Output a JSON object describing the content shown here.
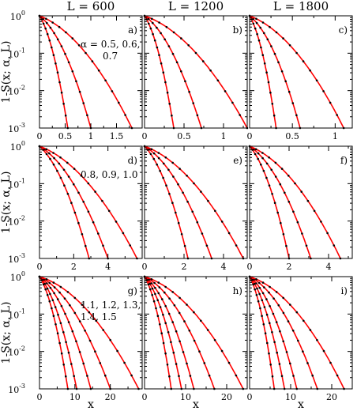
{
  "chart_data": [
    {
      "type": "line",
      "tag": "a)",
      "column_title": "L = 600",
      "xlim": [
        0,
        2.0
      ],
      "ylim": [
        0.001,
        1
      ],
      "yscale": "log",
      "xticks": [
        0,
        0.5,
        1,
        1.5
      ],
      "xtick_labels": [
        "0",
        "0.5",
        "1",
        "1.5"
      ],
      "annotation": [
        "α = 0.5, 0.6,",
        "0.7"
      ],
      "series": [
        {
          "x_end": 0.55
        },
        {
          "x_end": 1.0
        },
        {
          "x_end": 1.8
        }
      ]
    },
    {
      "type": "line",
      "tag": "b)",
      "column_title": "L = 1200",
      "xlim": [
        0,
        1.3
      ],
      "ylim": [
        0.001,
        1
      ],
      "yscale": "log",
      "xticks": [
        0,
        0.5,
        1
      ],
      "xtick_labels": [
        "0",
        "0.5",
        "1"
      ],
      "annotation": [],
      "series": [
        {
          "x_end": 0.37
        },
        {
          "x_end": 0.72
        },
        {
          "x_end": 1.3
        }
      ]
    },
    {
      "type": "line",
      "tag": "c)",
      "column_title": "L = 1800",
      "xlim": [
        0,
        1.2
      ],
      "ylim": [
        0.001,
        1
      ],
      "yscale": "log",
      "xticks": [
        0,
        0.5,
        1
      ],
      "xtick_labels": [
        "0",
        "0.5",
        "1"
      ],
      "annotation": [],
      "series": [
        {
          "x_end": 0.31
        },
        {
          "x_end": 0.59
        },
        {
          "x_end": 1.1
        }
      ]
    },
    {
      "type": "line",
      "tag": "d)",
      "column_title": "",
      "xlim": [
        0,
        6
      ],
      "ylim": [
        0.001,
        1
      ],
      "yscale": "log",
      "xticks": [
        0,
        2,
        4
      ],
      "xtick_labels": [
        "0",
        "2",
        "4"
      ],
      "annotation": [
        "0.8, 0.9, 1.0"
      ],
      "series": [
        {
          "x_end": 2.9
        },
        {
          "x_end": 4.0
        },
        {
          "x_end": 5.7
        }
      ]
    },
    {
      "type": "line",
      "tag": "e)",
      "column_title": "",
      "xlim": [
        0,
        5.2
      ],
      "ylim": [
        0.001,
        1
      ],
      "yscale": "log",
      "xticks": [
        0,
        2,
        4
      ],
      "xtick_labels": [
        "0",
        "2",
        "4"
      ],
      "annotation": [],
      "series": [
        {
          "x_end": 2.2
        },
        {
          "x_end": 3.4
        },
        {
          "x_end": 5.0
        }
      ]
    },
    {
      "type": "line",
      "tag": "f)",
      "column_title": "",
      "xlim": [
        0,
        5.2
      ],
      "ylim": [
        0.001,
        1
      ],
      "yscale": "log",
      "xticks": [
        0,
        2,
        4
      ],
      "xtick_labels": [
        "0",
        "2",
        "4"
      ],
      "annotation": [],
      "series": [
        {
          "x_end": 2.0
        },
        {
          "x_end": 3.1
        },
        {
          "x_end": 4.6
        }
      ]
    },
    {
      "type": "line",
      "tag": "g)",
      "column_title": "",
      "xlim": [
        0,
        29
      ],
      "ylim": [
        0.001,
        1
      ],
      "yscale": "log",
      "xticks": [
        0,
        10,
        20
      ],
      "xtick_labels": [
        "0",
        "10",
        "20"
      ],
      "annotation": [
        "1.1, 1.2, 1.3,",
        "1.4, 1.5"
      ],
      "series": [
        {
          "x_end": 8.0
        },
        {
          "x_end": 10.5
        },
        {
          "x_end": 14.5
        },
        {
          "x_end": 20.0
        },
        {
          "x_end": 28.0
        }
      ]
    },
    {
      "type": "line",
      "tag": "h)",
      "column_title": "",
      "xlim": [
        0,
        25
      ],
      "ylim": [
        0.001,
        1
      ],
      "yscale": "log",
      "xticks": [
        0,
        10,
        20
      ],
      "xtick_labels": [
        "0",
        "10",
        "20"
      ],
      "annotation": [],
      "series": [
        {
          "x_end": 6.5
        },
        {
          "x_end": 9.0
        },
        {
          "x_end": 12.0
        },
        {
          "x_end": 17.0
        },
        {
          "x_end": 24.0
        }
      ]
    },
    {
      "type": "line",
      "tag": "i)",
      "column_title": "",
      "xlim": [
        0,
        25
      ],
      "ylim": [
        0.001,
        1
      ],
      "yscale": "log",
      "xticks": [
        0,
        10,
        20
      ],
      "xtick_labels": [
        "0",
        "10",
        "20"
      ],
      "annotation": [],
      "series": [
        {
          "x_end": 6.0
        },
        {
          "x_end": 8.5
        },
        {
          "x_end": 11.5
        },
        {
          "x_end": 16.5
        },
        {
          "x_end": 23.0
        }
      ]
    }
  ],
  "labels": {
    "ylabel": "1-S(x; α, L)",
    "xlabel": "x",
    "ytick_base": "10",
    "ytick_exponents": [
      "0",
      "-1",
      "-2",
      "-3"
    ]
  },
  "colors": {
    "line": "#ff0000",
    "marker": "#000000",
    "axis": "#000000"
  }
}
